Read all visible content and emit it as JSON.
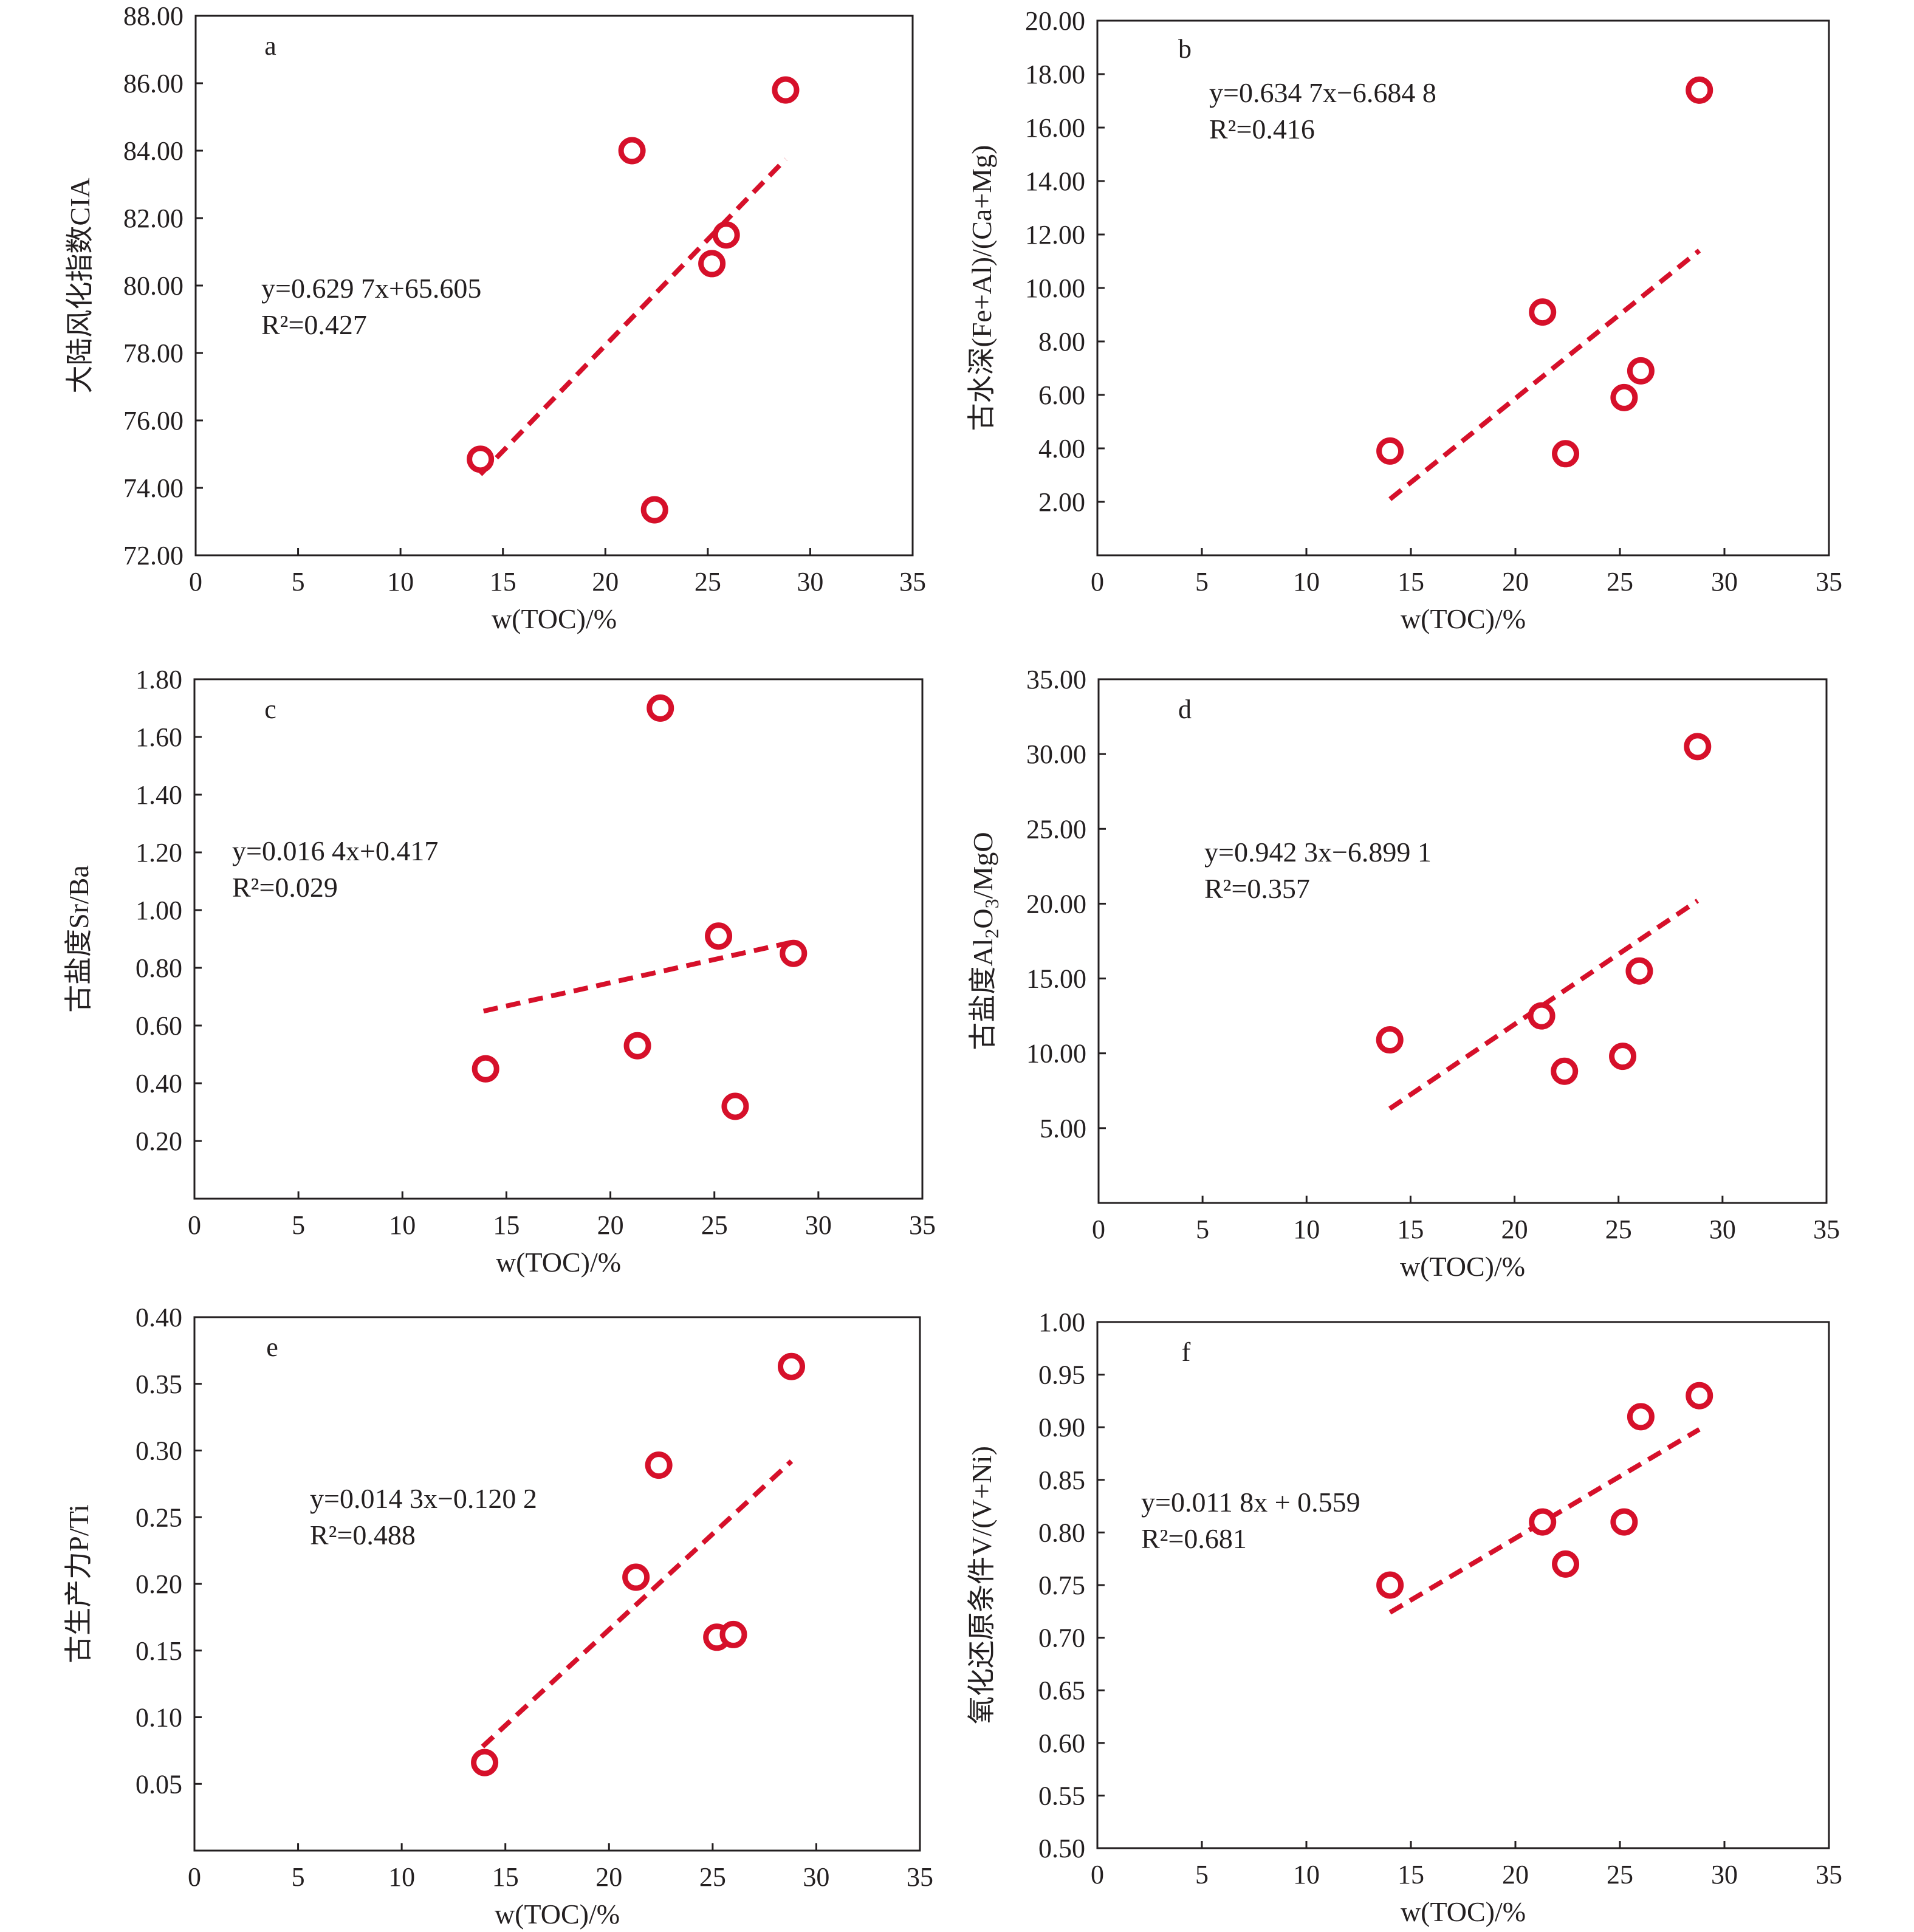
{
  "figure": {
    "x_axis_label": "w(TOC)/%"
  },
  "colors": {
    "marker": "#d6102a",
    "fit_line": "#d6102a",
    "axes": "#231f20"
  },
  "chart_data": [
    {
      "type": "scatter",
      "panel": "a",
      "ylabel": "大陆风化指数CIA",
      "xlabel": "w(TOC)/%",
      "xlim": [
        0,
        35
      ],
      "ylim": [
        72,
        88
      ],
      "x_ticks": [
        "0",
        "5",
        "10",
        "15",
        "20",
        "25",
        "30",
        "35"
      ],
      "y_ticks": [
        "72.00",
        "74.00",
        "76.00",
        "78.00",
        "80.00",
        "82.00",
        "84.00",
        "86.00",
        "88.00"
      ],
      "x": [
        13.9,
        21.3,
        22.4,
        25.2,
        25.9,
        28.8
      ],
      "y": [
        74.85,
        84.0,
        73.35,
        80.65,
        81.5,
        85.8
      ],
      "fit": {
        "equation": "y=0.629 7x+65.605",
        "r2": "R²=0.427",
        "x_range": [
          13.9,
          28.8
        ],
        "y_range": [
          74.4,
          83.75
        ]
      }
    },
    {
      "type": "scatter",
      "panel": "b",
      "ylabel": "古水深(Fe+Al)/(Ca+Mg)",
      "xlabel": "w(TOC)/%",
      "xlim": [
        0,
        35
      ],
      "ylim": [
        0,
        20
      ],
      "x_ticks": [
        "0",
        "5",
        "10",
        "15",
        "20",
        "25",
        "30",
        "35"
      ],
      "y_ticks": [
        "",
        "2.00",
        "4.00",
        "6.00",
        "8.00",
        "10.00",
        "12.00",
        "14.00",
        "16.00",
        "18.00",
        "20.00"
      ],
      "x": [
        14.0,
        21.3,
        22.4,
        25.2,
        26.0,
        28.8
      ],
      "y": [
        3.9,
        9.1,
        3.8,
        5.9,
        6.9,
        17.4
      ],
      "fit": {
        "equation": "y=0.634 7x−6.684 8",
        "r2": "R²=0.416",
        "x_range": [
          14.0,
          28.8
        ],
        "y_range": [
          2.1,
          11.4
        ]
      }
    },
    {
      "type": "scatter",
      "panel": "c",
      "ylabel": "古盐度Sr/Ba",
      "xlabel": "w(TOC)/%",
      "xlim": [
        0,
        35
      ],
      "ylim": [
        0,
        1.8
      ],
      "x_ticks": [
        "0",
        "5",
        "10",
        "15",
        "20",
        "25",
        "30",
        "35"
      ],
      "y_ticks": [
        "",
        "0.20",
        "0.40",
        "0.60",
        "0.80",
        "1.00",
        "1.20",
        "1.40",
        "1.60",
        "1.80"
      ],
      "x": [
        14.0,
        21.3,
        22.4,
        25.2,
        26.0,
        28.8
      ],
      "y": [
        0.45,
        0.53,
        1.7,
        0.91,
        0.32,
        0.85
      ],
      "fit": {
        "equation": "y=0.016 4x+0.417",
        "r2": "R²=0.029",
        "x_range": [
          13.9,
          28.8
        ],
        "y_range": [
          0.65,
          0.89
        ]
      }
    },
    {
      "type": "scatter",
      "panel": "d",
      "ylabel": "古盐度Al2O3/MgO",
      "ylabel_parts": {
        "before": "古盐度Al",
        "sub1": "2",
        "mid": "O",
        "sub2": "3",
        "after": "/MgO"
      },
      "xlabel": "w(TOC)/%",
      "xlim": [
        0,
        35
      ],
      "ylim": [
        0,
        35
      ],
      "x_ticks": [
        "0",
        "5",
        "10",
        "15",
        "20",
        "25",
        "30",
        "35"
      ],
      "y_ticks": [
        "",
        "5.00",
        "10.00",
        "15.00",
        "20.00",
        "25.00",
        "30.00",
        "35.00"
      ],
      "x": [
        14.0,
        21.3,
        22.4,
        25.2,
        26.0,
        28.8
      ],
      "y": [
        10.9,
        12.5,
        8.8,
        9.8,
        15.5,
        30.5
      ],
      "fit": {
        "equation": "y=0.942 3x−6.899 1",
        "r2": "R²=0.357",
        "x_range": [
          14.0,
          28.8
        ],
        "y_range": [
          6.3,
          20.2
        ]
      }
    },
    {
      "type": "scatter",
      "panel": "e",
      "ylabel": "古生产力P/Ti",
      "xlabel": "w(TOC)/%",
      "xlim": [
        0,
        35
      ],
      "ylim": [
        0,
        0.4
      ],
      "x_ticks": [
        "0",
        "5",
        "10",
        "15",
        "20",
        "25",
        "30",
        "35"
      ],
      "y_ticks": [
        "",
        "0.05",
        "0.10",
        "0.15",
        "0.20",
        "0.25",
        "0.30",
        "0.35",
        "0.40"
      ],
      "x": [
        14.0,
        21.3,
        22.4,
        25.2,
        26.0,
        28.8
      ],
      "y": [
        0.066,
        0.205,
        0.289,
        0.16,
        0.162,
        0.363
      ],
      "fit": {
        "equation": "y=0.014 3x−0.120 2",
        "r2": "R²=0.488",
        "x_range": [
          13.9,
          28.8
        ],
        "y_range": [
          0.078,
          0.292
        ]
      }
    },
    {
      "type": "scatter",
      "panel": "f",
      "ylabel": "氧化还原条件V/(V+Ni)",
      "xlabel": "w(TOC)/%",
      "xlim": [
        0,
        35
      ],
      "ylim": [
        0.5,
        1.0
      ],
      "x_ticks": [
        "0",
        "5",
        "10",
        "15",
        "20",
        "25",
        "30",
        "35"
      ],
      "y_ticks": [
        "0.50",
        "0.55",
        "0.60",
        "0.65",
        "0.70",
        "0.75",
        "0.80",
        "0.85",
        "0.90",
        "0.95",
        "1.00"
      ],
      "x": [
        14.0,
        21.3,
        22.4,
        25.2,
        26.0,
        28.8
      ],
      "y": [
        0.75,
        0.81,
        0.77,
        0.81,
        0.91,
        0.93
      ],
      "fit": {
        "equation": "y=0.011 8x + 0.559",
        "r2": "R²=0.681",
        "x_range": [
          14.0,
          28.8
        ],
        "y_range": [
          0.724,
          0.898
        ]
      }
    }
  ]
}
